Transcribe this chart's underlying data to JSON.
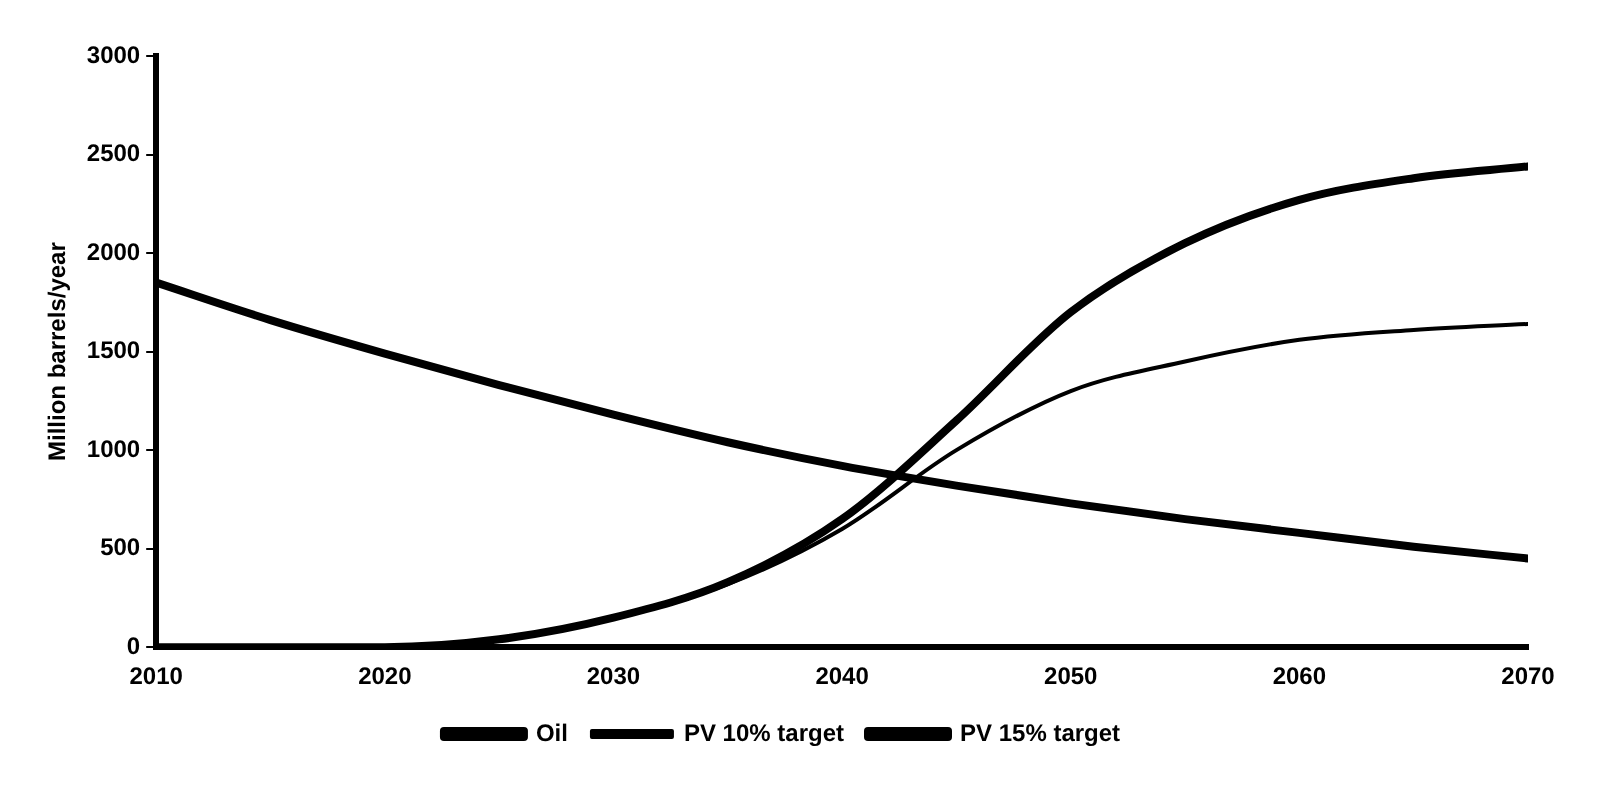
{
  "chart_data": {
    "type": "line",
    "ylabel": "Million barrels/year",
    "x": [
      2010,
      2015,
      2020,
      2025,
      2030,
      2035,
      2040,
      2045,
      2050,
      2055,
      2060,
      2065,
      2070
    ],
    "series": [
      {
        "name": "Oil",
        "color": "#000000",
        "values": [
          1850,
          1660,
          1490,
          1330,
          1180,
          1040,
          920,
          820,
          730,
          650,
          580,
          510,
          450
        ]
      },
      {
        "name": "PV 10% target",
        "color": "#000000",
        "values": [
          0,
          0,
          0,
          40,
          150,
          320,
          600,
          1000,
          1300,
          1450,
          1560,
          1610,
          1640
        ]
      },
      {
        "name": "PV 15% target",
        "color": "#000000",
        "values": [
          0,
          0,
          0,
          40,
          150,
          330,
          650,
          1150,
          1700,
          2050,
          2270,
          2380,
          2440
        ]
      }
    ],
    "xlim": [
      2010,
      2070
    ],
    "xticks": [
      2010,
      2020,
      2030,
      2040,
      2050,
      2060,
      2070
    ],
    "ylim": [
      0,
      3000
    ],
    "yticks": [
      0,
      500,
      1000,
      1500,
      2000,
      2500,
      3000
    ],
    "grid": false,
    "legend": "bottom",
    "marker": "none",
    "line_style": "solid"
  }
}
